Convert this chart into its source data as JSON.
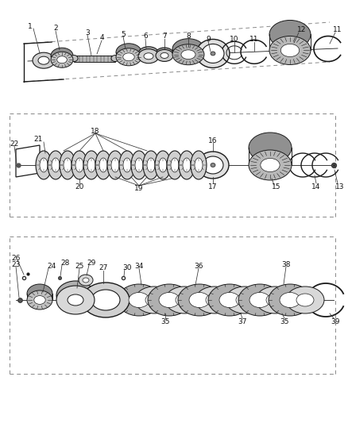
{
  "bg_color": "#ffffff",
  "line_color": "#1a1a1a",
  "dash_color": "#888888",
  "gray_dark": "#707070",
  "gray_mid": "#a0a0a0",
  "gray_light": "#d0d0d0",
  "gray_fill": "#c8c8c8",
  "white": "#ffffff"
}
